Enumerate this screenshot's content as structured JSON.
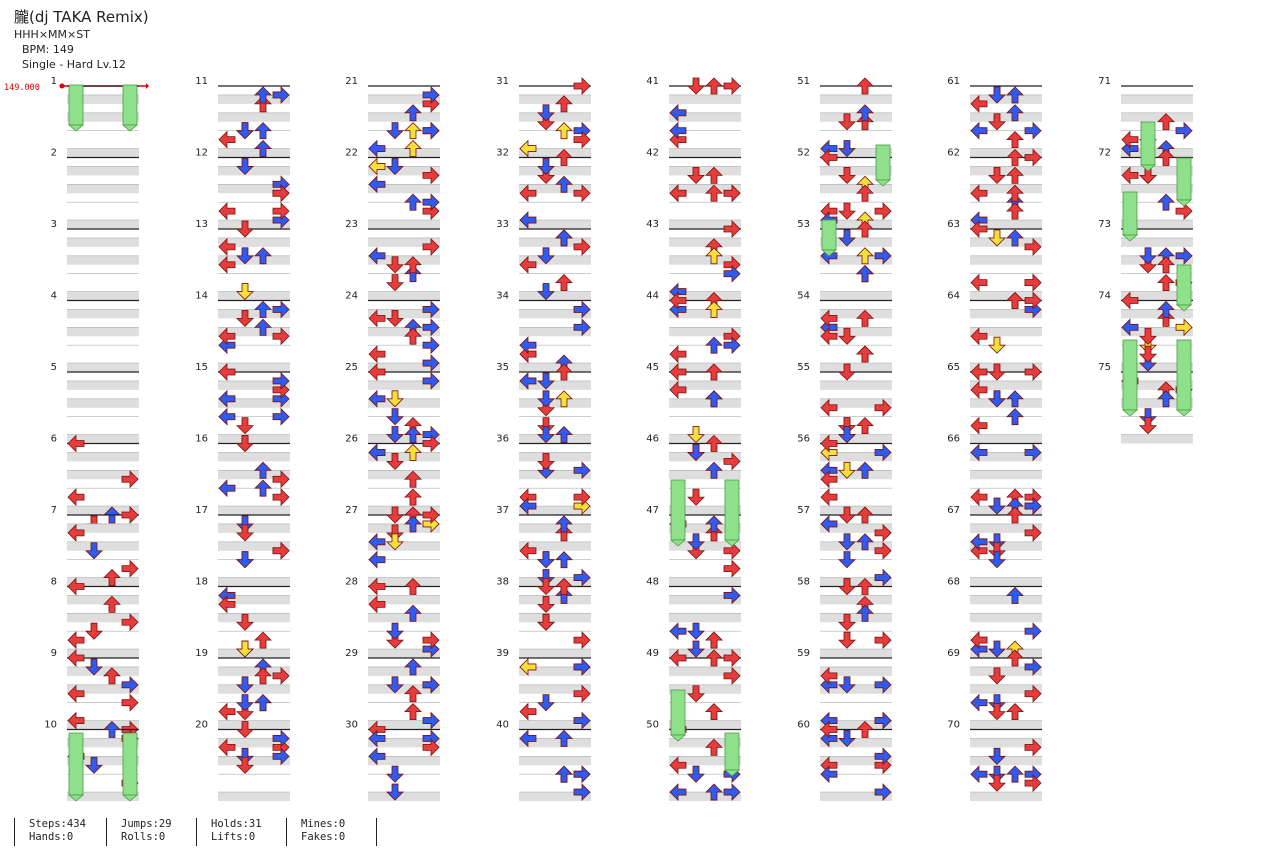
{
  "song": {
    "title": "朧(dj TAKA Remix)",
    "artist": "HHH×MM×ST",
    "bpm_text": "BPM: 149",
    "difficulty_text": "Single - Hard  Lv.12"
  },
  "bpm_marker": "149.000",
  "stats": [
    {
      "top": "Steps:434",
      "bottom": "Hands:0"
    },
    {
      "top": "Jumps:29",
      "bottom": "Rolls:0"
    },
    {
      "top": "Holds:31",
      "bottom": "Lifts:0"
    },
    {
      "top": "Mines:0",
      "bottom": "Fakes:0"
    }
  ],
  "colors": {
    "left": "#f03a3a",
    "down": "#2f5bf0",
    "up": "#e63c3c",
    "right": "#f03a3a",
    "eighth_blue": "#2f5bf0",
    "sixteenth_yellow": "#f5e03a",
    "hold": "#8fe08a",
    "band": "#dedede",
    "bpm": "#e00000"
  },
  "columns": [
    {
      "start_measure": 1,
      "measure_count": 10
    },
    {
      "start_measure": 11,
      "measure_count": 10
    },
    {
      "start_measure": 21,
      "measure_count": 10
    },
    {
      "start_measure": 31,
      "measure_count": 10
    },
    {
      "start_measure": 41,
      "measure_count": 10
    },
    {
      "start_measure": 51,
      "measure_count": 10
    },
    {
      "start_measure": 61,
      "measure_count": 10
    },
    {
      "start_measure": 71,
      "measure_count": 5
    }
  ],
  "measure_numbers": [
    "1",
    "2",
    "3",
    "4",
    "5",
    "6",
    "7",
    "8",
    "9",
    "10",
    "11",
    "12",
    "13",
    "14",
    "15",
    "16",
    "17",
    "18",
    "19",
    "20",
    "21",
    "22",
    "23",
    "24",
    "25",
    "26",
    "27",
    "28",
    "29",
    "30",
    "31",
    "32",
    "33",
    "34",
    "35",
    "36",
    "37",
    "38",
    "39",
    "40",
    "41",
    "42",
    "43",
    "44",
    "45",
    "46",
    "47",
    "48",
    "49",
    "50",
    "51",
    "52",
    "53",
    "54",
    "55",
    "56",
    "57",
    "58",
    "59",
    "60",
    "61",
    "62",
    "63",
    "64",
    "65",
    "66",
    "67",
    "68",
    "69",
    "70",
    "71",
    "72",
    "73",
    "74",
    "75"
  ],
  "notes_by_measure": {
    "6": [
      [
        0,
        "L",
        "q"
      ],
      [
        0.5,
        "R",
        "q"
      ],
      [
        0.75,
        "L",
        "q"
      ],
      [
        1.125,
        "D",
        "q"
      ],
      [
        1.0,
        "U",
        "e"
      ]
    ],
    "7": [
      [
        0,
        "R",
        "q"
      ],
      [
        0.25,
        "L",
        "q"
      ],
      [
        0.5,
        "D",
        "e"
      ],
      [
        0.75,
        "R",
        "q"
      ],
      [
        0.875,
        "U",
        "q"
      ]
    ],
    "8": [
      [
        0,
        "L",
        "q"
      ],
      [
        0.25,
        "U",
        "q"
      ],
      [
        0.5,
        "R",
        "q"
      ],
      [
        0.625,
        "D",
        "q"
      ],
      [
        0.75,
        "L",
        "q"
      ]
    ],
    "9": [
      [
        0,
        "L",
        "q"
      ],
      [
        0.125,
        "D",
        "e"
      ],
      [
        0.25,
        "U",
        "q"
      ],
      [
        0.375,
        "R",
        "e"
      ],
      [
        0.5,
        "L",
        "q"
      ],
      [
        0.625,
        "R",
        "q"
      ],
      [
        0.875,
        "L",
        "q"
      ],
      [
        1.0,
        "R",
        "q"
      ]
    ],
    "10": [
      [
        0,
        "U",
        "e"
      ],
      [
        0.125,
        "R",
        "q"
      ],
      [
        0.375,
        "L",
        "q"
      ],
      [
        0.5,
        "D",
        "e"
      ],
      [
        0.75,
        "R",
        "q"
      ]
    ]
  }
}
